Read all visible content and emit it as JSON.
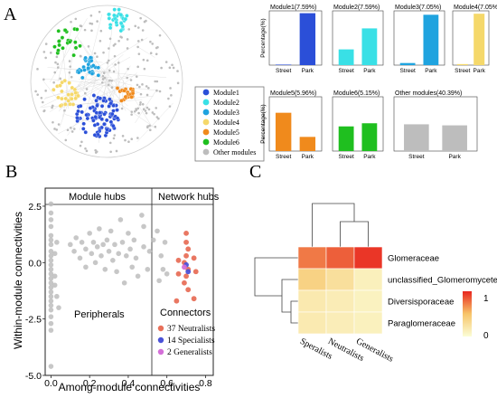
{
  "panels": {
    "a": "A",
    "b": "B",
    "c": "C"
  },
  "network_legend": [
    {
      "label": "Module1",
      "color": "#2b4fd8"
    },
    {
      "label": "Module2",
      "color": "#39e0e6"
    },
    {
      "label": "Module3",
      "color": "#1fa3df"
    },
    {
      "label": "Module4",
      "color": "#f5d86a"
    },
    {
      "label": "Module5",
      "color": "#f08a1c"
    },
    {
      "label": "Module6",
      "color": "#1fbf1f"
    },
    {
      "label": "Other modules",
      "color": "#bdbdbd"
    }
  ],
  "chart_data": [
    {
      "type": "bar",
      "panel": "A",
      "ylabel": "Percentage(%)",
      "categories": [
        "Street",
        "Park"
      ],
      "subplots": [
        {
          "title": "Module1(7.59%)",
          "values": [
            1,
            99
          ],
          "color": "#2b4fd8"
        },
        {
          "title": "Module2(7.59%)",
          "values": [
            30,
            70
          ],
          "color": "#39e0e6"
        },
        {
          "title": "Module3(7.05%)",
          "values": [
            4,
            96
          ],
          "color": "#1fa3df"
        },
        {
          "title": "Module4(7.05%)",
          "values": [
            2,
            98
          ],
          "color": "#f5d86a"
        },
        {
          "title": "Module5(5.96%)",
          "values": [
            73,
            27
          ],
          "color": "#f08a1c"
        },
        {
          "title": "Module6(5.15%)",
          "values": [
            47,
            53
          ],
          "color": "#1fbf1f"
        },
        {
          "title": "Other modules(40.39%)",
          "values": [
            51,
            49
          ],
          "color": "#bdbdbd"
        }
      ]
    },
    {
      "type": "scatter",
      "panel": "B",
      "xlabel": "Among-module connectivities",
      "ylabel": "Within-module connectivities",
      "xlim": [
        -0.03,
        0.84
      ],
      "ylim": [
        -5.0,
        3.3
      ],
      "xticks": [
        "0.0",
        "0.2",
        "0.4",
        "0.6",
        "0.8"
      ],
      "yticks": [
        "2.5",
        "0.0",
        "-2.5",
        "-5.0"
      ],
      "region_labels": [
        "Module hubs",
        "Network hubs",
        "Peripherals",
        "Connectors"
      ],
      "legend": [
        {
          "label": "37 Neutralists",
          "color": "#e8705a"
        },
        {
          "label": "14 Specialists",
          "color": "#4a52d8"
        },
        {
          "label": "2 Generalists",
          "color": "#d46fd8"
        }
      ],
      "points_grey": [
        [
          0,
          2.6
        ],
        [
          0,
          2.2
        ],
        [
          0,
          1.9
        ],
        [
          0,
          1.6
        ],
        [
          0,
          1.2
        ],
        [
          0,
          1.0
        ],
        [
          0,
          0.8
        ],
        [
          0,
          0.5
        ],
        [
          0,
          0.3
        ],
        [
          0,
          0.1
        ],
        [
          0,
          -0.1
        ],
        [
          0,
          -0.3
        ],
        [
          0,
          -0.5
        ],
        [
          0,
          -0.7
        ],
        [
          0,
          -0.9
        ],
        [
          0,
          -1.1
        ],
        [
          0,
          -1.3
        ],
        [
          0,
          -1.5
        ],
        [
          0,
          -1.7
        ],
        [
          0,
          -1.9
        ],
        [
          0,
          -2.1
        ],
        [
          0,
          -2.4
        ],
        [
          0,
          -2.7
        ],
        [
          0,
          -3.0
        ],
        [
          0,
          -4.6
        ],
        [
          0.02,
          0.4
        ],
        [
          0.02,
          -0.6
        ],
        [
          0.02,
          -1.0
        ],
        [
          0.03,
          0.9
        ],
        [
          0.03,
          -1.5
        ],
        [
          0.04,
          -2.0
        ],
        [
          0.1,
          0.8
        ],
        [
          0.12,
          0.5
        ],
        [
          0.13,
          1.1
        ],
        [
          0.15,
          0.2
        ],
        [
          0.16,
          0.9
        ],
        [
          0.18,
          0.6
        ],
        [
          0.18,
          -0.2
        ],
        [
          0.2,
          1.3
        ],
        [
          0.21,
          0.4
        ],
        [
          0.22,
          0.9
        ],
        [
          0.23,
          0.0
        ],
        [
          0.24,
          0.7
        ],
        [
          0.25,
          1.5
        ],
        [
          0.26,
          0.3
        ],
        [
          0.27,
          0.8
        ],
        [
          0.28,
          -0.3
        ],
        [
          0.29,
          1.0
        ],
        [
          0.3,
          0.5
        ],
        [
          0.31,
          1.4
        ],
        [
          0.32,
          0.1
        ],
        [
          0.33,
          0.8
        ],
        [
          0.34,
          -0.4
        ],
        [
          0.35,
          0.4
        ],
        [
          0.36,
          1.9
        ],
        [
          0.37,
          0.9
        ],
        [
          0.38,
          -0.9
        ],
        [
          0.39,
          0.3
        ],
        [
          0.4,
          1.3
        ],
        [
          0.41,
          0.6
        ],
        [
          0.42,
          -0.2
        ],
        [
          0.43,
          1.0
        ],
        [
          0.44,
          0.2
        ],
        [
          0.45,
          -0.6
        ],
        [
          0.47,
          2.1
        ],
        [
          0.48,
          1.6
        ],
        [
          0.48,
          0.7
        ],
        [
          0.5,
          -0.3
        ],
        [
          0.51,
          0.5
        ],
        [
          0.53,
          1.0
        ],
        [
          0.55,
          1.4
        ],
        [
          0.56,
          -0.8
        ],
        [
          0.57,
          0.3
        ],
        [
          0.58,
          -0.3
        ],
        [
          0.59,
          0.9
        ],
        [
          0.6,
          -0.5
        ]
      ],
      "points_connectors": [
        {
          "x": 0.7,
          "y": 1.3,
          "g": 0
        },
        {
          "x": 0.7,
          "y": 0.9,
          "g": 0
        },
        {
          "x": 0.71,
          "y": 0.6,
          "g": 0
        },
        {
          "x": 0.7,
          "y": 0.3,
          "g": 0
        },
        {
          "x": 0.69,
          "y": 0.0,
          "g": 0
        },
        {
          "x": 0.71,
          "y": -0.3,
          "g": 0
        },
        {
          "x": 0.7,
          "y": -0.6,
          "g": 0
        },
        {
          "x": 0.69,
          "y": -0.9,
          "g": 0
        },
        {
          "x": 0.71,
          "y": -1.2,
          "g": 0
        },
        {
          "x": 0.66,
          "y": 0.1,
          "g": 0
        },
        {
          "x": 0.74,
          "y": 0.2,
          "g": 0
        },
        {
          "x": 0.75,
          "y": -0.4,
          "g": 0
        },
        {
          "x": 0.66,
          "y": -0.5,
          "g": 0
        },
        {
          "x": 0.65,
          "y": -1.7,
          "g": 0
        },
        {
          "x": 0.74,
          "y": -1.6,
          "g": 0
        },
        {
          "x": 0.7,
          "y": -0.1,
          "g": 1
        },
        {
          "x": 0.71,
          "y": -0.4,
          "g": 1
        },
        {
          "x": 0.69,
          "y": -0.2,
          "g": 2
        }
      ]
    },
    {
      "type": "heatmap",
      "panel": "C",
      "rows": [
        "Glomeraceae",
        "unclassified_Glomeromycetes",
        "Diversisporaceae",
        "Paraglomeraceae"
      ],
      "columns": [
        "Speralists",
        "Neutralists",
        "Generalists"
      ],
      "values": [
        [
          0.74,
          0.82,
          0.95
        ],
        [
          0.38,
          0.27,
          0.12
        ],
        [
          0.18,
          0.15,
          0.1
        ],
        [
          0.17,
          0.14,
          0.11
        ]
      ],
      "colorbar_ticks": [
        "1",
        "0"
      ],
      "colorbar_range": [
        0,
        1
      ]
    }
  ]
}
